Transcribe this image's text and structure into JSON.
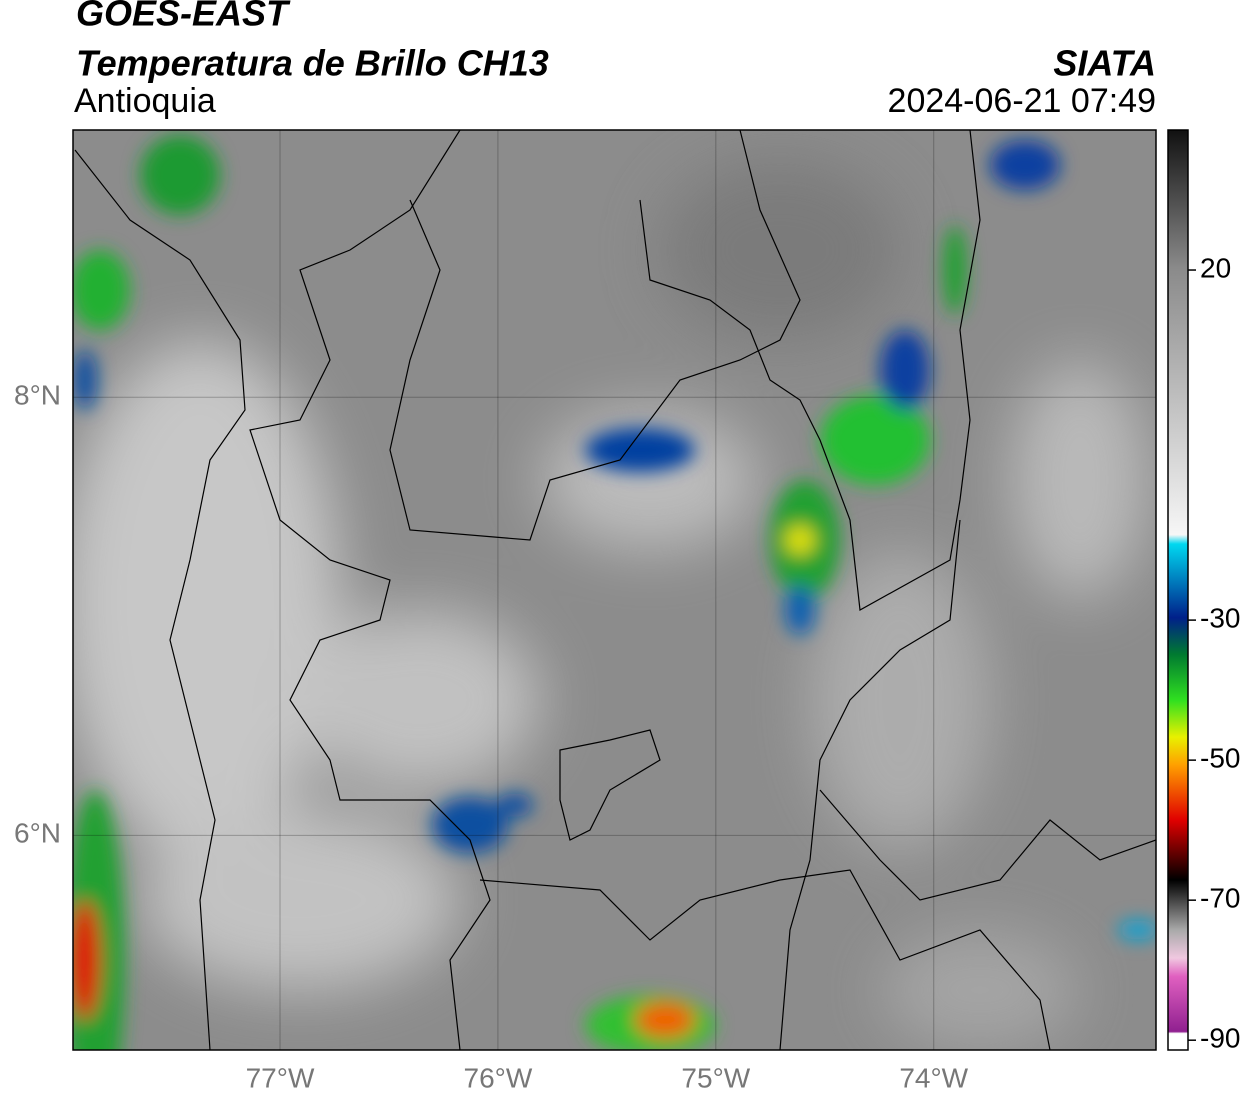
{
  "chart_data": {
    "type": "map",
    "title": "GOES-EAST",
    "subtitle": "Temperatura de Brillo CH13",
    "region": "Antioquia",
    "source": "SIATA",
    "timestamp": "2024-06-21 07:49",
    "xlim": [
      -77.95,
      -72.98
    ],
    "ylim": [
      5.02,
      9.22
    ],
    "xticks": [
      {
        "value": -77,
        "label": "77°W"
      },
      {
        "value": -76,
        "label": "76°W"
      },
      {
        "value": -75,
        "label": "75°W"
      },
      {
        "value": -74,
        "label": "74°W"
      }
    ],
    "yticks": [
      {
        "value": 6,
        "label": "6°N"
      },
      {
        "value": 8,
        "label": "8°N"
      }
    ],
    "grid": true,
    "colorbar": {
      "lim": [
        -91.4,
        40
      ],
      "ticks": [
        20,
        -30,
        -50,
        -70,
        -90
      ]
    }
  }
}
